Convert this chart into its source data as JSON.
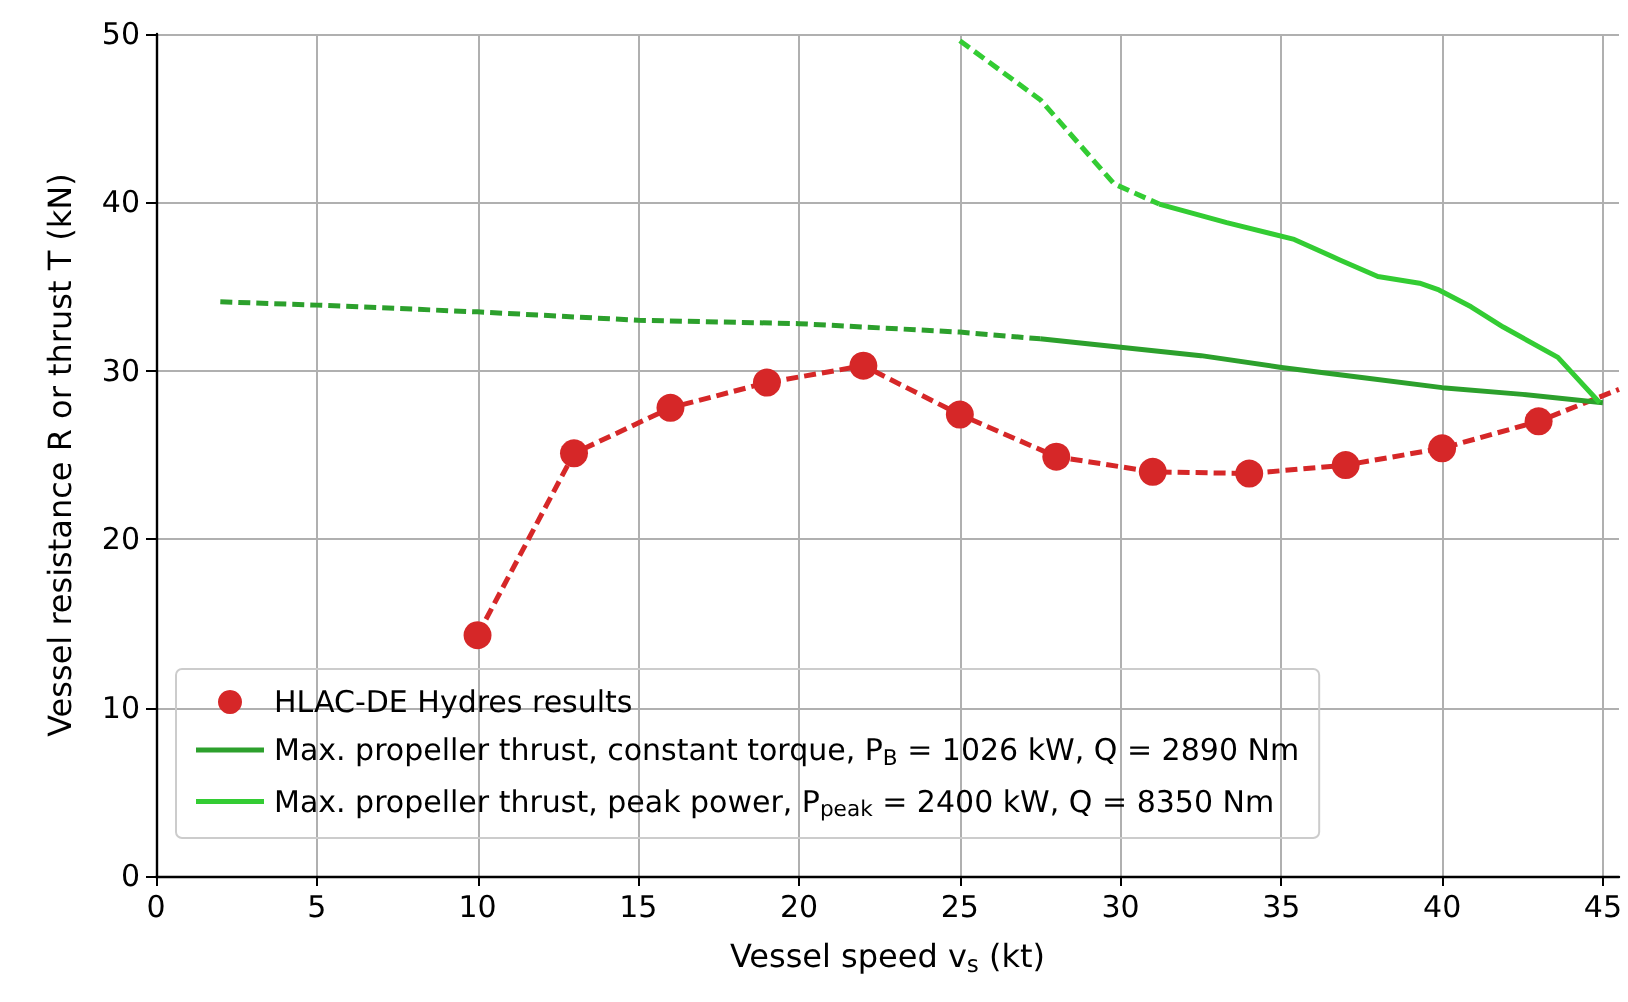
{
  "chart_data": {
    "type": "line",
    "xlabel": "Vessel speed v$_{s}$ (kt)",
    "ylabel": "Vessel resistance R or thrust T (kN)",
    "xlim": [
      0,
      45.5
    ],
    "xticks": [
      0,
      5,
      10,
      15,
      20,
      25,
      30,
      35,
      40,
      45
    ],
    "ylim": [
      0,
      50
    ],
    "yticks": [
      0,
      10,
      20,
      30,
      40,
      50
    ],
    "grid": true,
    "legend": "bottom",
    "series": [
      {
        "color": "#d62728",
        "line_style": "dashed",
        "marker": "none",
        "x": [
          10,
          13,
          16,
          19,
          22,
          25,
          28,
          31,
          34,
          37,
          40,
          43,
          45.5
        ],
        "values": [
          14.3,
          25.1,
          27.8,
          29.3,
          30.3,
          27.4,
          24.9,
          24.0,
          23.9,
          24.4,
          25.4,
          27.0,
          28.9
        ]
      },
      {
        "type": "scatter",
        "name": "HLAC-DE Hydres results",
        "color": "#d62728",
        "marker": "circle",
        "x": [
          10,
          13,
          16,
          19,
          22,
          25,
          28,
          31,
          34,
          37,
          40,
          43
        ],
        "values": [
          14.3,
          25.1,
          27.8,
          29.3,
          30.3,
          27.4,
          24.9,
          24.0,
          23.9,
          24.4,
          25.4,
          27.0
        ]
      },
      {
        "color": "#2ca02c",
        "line_style": "dashed",
        "marker": "none",
        "x": [
          2,
          5,
          10,
          15,
          20,
          25,
          27.5
        ],
        "values": [
          34.1,
          33.9,
          33.5,
          33.0,
          32.8,
          32.3,
          31.9
        ]
      },
      {
        "name": "Max. propeller thrust, constant torque, P$_{B}$ = 1026 kW, Q = 2890 Nm",
        "color": "#2ca02c",
        "line_style": "solid",
        "marker": "none",
        "x": [
          27.5,
          30,
          32.5,
          35,
          37.5,
          40,
          42.5,
          45
        ],
        "values": [
          31.9,
          31.4,
          30.9,
          30.2,
          29.6,
          29.0,
          28.6,
          28.1
        ]
      },
      {
        "color": "#33cc33",
        "line_style": "dashed",
        "marker": "none",
        "x": [
          25,
          27.5,
          29.8,
          31.2
        ],
        "values": [
          49.6,
          46.1,
          41.1,
          39.9
        ]
      },
      {
        "name": "Max. propeller thrust, peak power, P$_{peak}$ = 2400 kW, Q = 8350 Nm",
        "color": "#33cc33",
        "line_style": "solid",
        "marker": "none",
        "x": [
          31.2,
          33.3,
          35.4,
          36.8,
          38.0,
          39.3,
          39.9,
          40.9,
          41.9,
          43.6,
          44.9
        ],
        "values": [
          39.9,
          38.8,
          37.8,
          36.6,
          35.6,
          35.2,
          34.8,
          33.8,
          32.6,
          30.8,
          28.1
        ]
      }
    ]
  }
}
